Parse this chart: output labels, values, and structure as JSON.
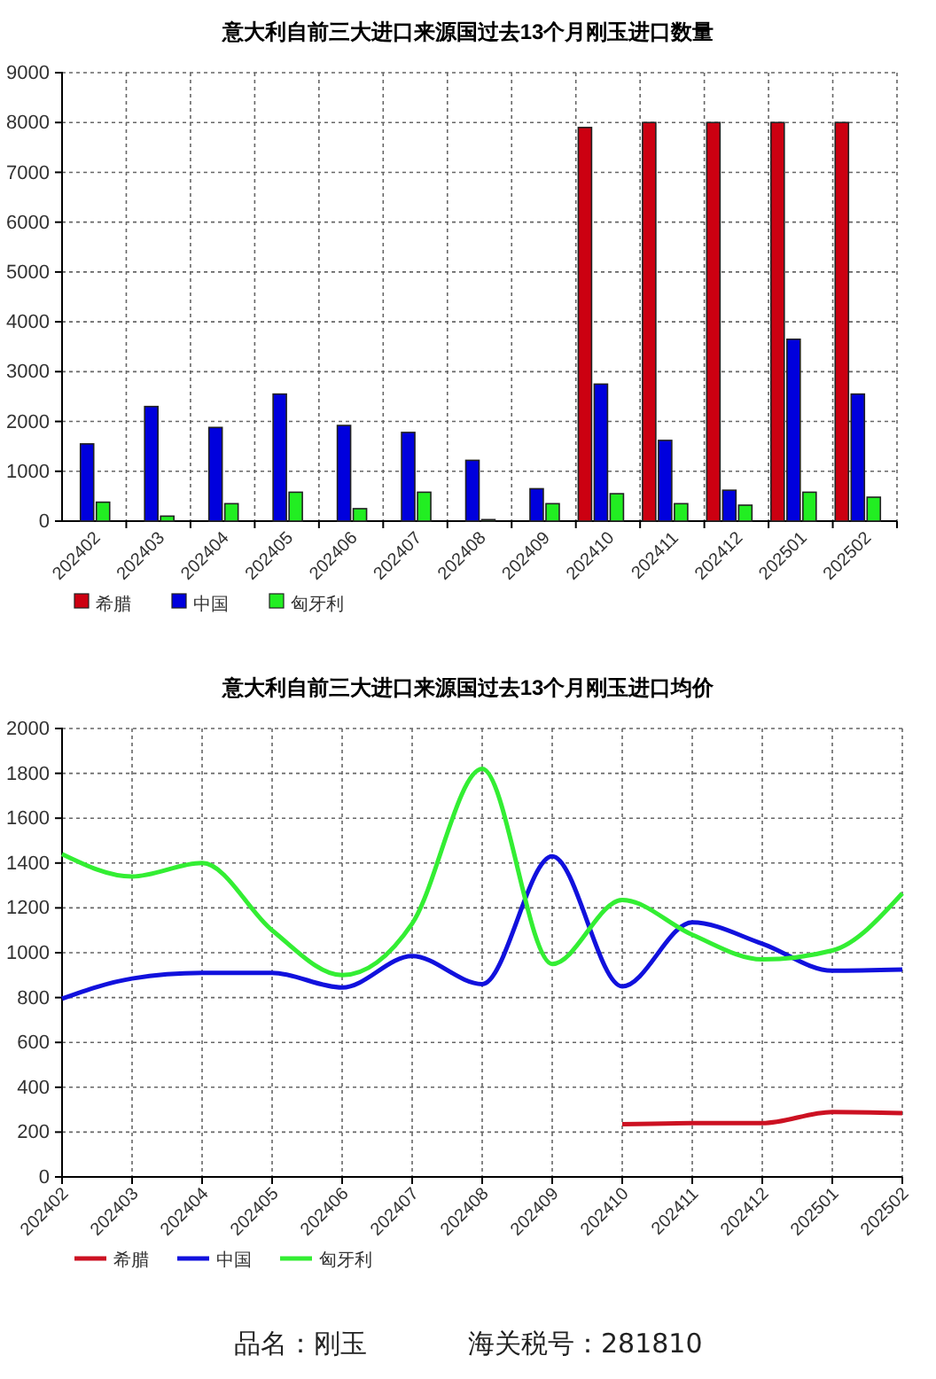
{
  "chart_data": [
    {
      "type": "bar",
      "title": "意大利自前三大进口来源国过去13个月刚玉进口数量",
      "categories": [
        "202402",
        "202403",
        "202404",
        "202405",
        "202406",
        "202407",
        "202408",
        "202409",
        "202410",
        "202411",
        "202412",
        "202501",
        "202502"
      ],
      "series": [
        {
          "name": "希腊",
          "color": "#cc0011",
          "values": [
            null,
            null,
            null,
            null,
            null,
            null,
            null,
            null,
            7900,
            8000,
            8000,
            8000,
            8000
          ]
        },
        {
          "name": "中国",
          "color": "#0000dd",
          "values": [
            1550,
            2300,
            1880,
            2550,
            1920,
            1780,
            1220,
            650,
            2750,
            1620,
            620,
            3650,
            2550
          ]
        },
        {
          "name": "匈牙利",
          "color": "#22ee22",
          "values": [
            380,
            100,
            350,
            580,
            250,
            580,
            30,
            350,
            550,
            350,
            320,
            580,
            480
          ]
        }
      ],
      "ylim": [
        0,
        9000
      ],
      "yticks": [
        0,
        1000,
        2000,
        3000,
        4000,
        5000,
        6000,
        7000,
        8000,
        9000
      ],
      "grid": true,
      "legend": "bottom"
    },
    {
      "type": "line",
      "title": "意大利自前三大进口来源国过去13个月刚玉进口均价",
      "categories": [
        "202402",
        "202403",
        "202404",
        "202405",
        "202406",
        "202407",
        "202408",
        "202409",
        "202410",
        "202411",
        "202412",
        "202501",
        "202502"
      ],
      "series": [
        {
          "name": "希腊",
          "color": "#cc1122",
          "values": [
            null,
            null,
            null,
            null,
            null,
            null,
            null,
            null,
            235,
            240,
            240,
            290,
            285
          ]
        },
        {
          "name": "中国",
          "color": "#1111dd",
          "values": [
            795,
            885,
            910,
            910,
            845,
            985,
            860,
            1430,
            850,
            1135,
            1040,
            920,
            925
          ]
        },
        {
          "name": "匈牙利",
          "color": "#33ee33",
          "values": [
            1440,
            1340,
            1400,
            1100,
            900,
            1130,
            1820,
            950,
            1235,
            1080,
            970,
            1010,
            1265
          ]
        }
      ],
      "ylim": [
        0,
        2000
      ],
      "yticks": [
        0,
        200,
        400,
        600,
        800,
        1000,
        1200,
        1400,
        1600,
        1800,
        2000
      ],
      "grid": true,
      "legend": "bottom",
      "marker": "none",
      "line_style": "solid",
      "annotations": [
        "品名：刚玉",
        "海关税号：281810"
      ]
    }
  ]
}
